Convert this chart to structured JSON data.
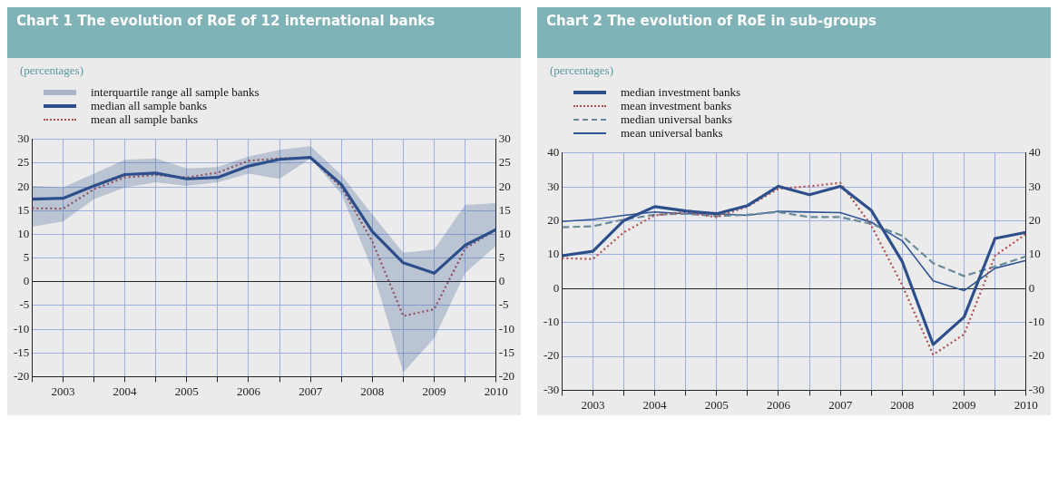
{
  "chart_data": [
    {
      "type": "line",
      "title": "Chart 1 The evolution of RoE of 12 international banks",
      "subtitle": "(percentages)",
      "x": [
        2002.5,
        2003,
        2003.5,
        2004,
        2004.5,
        2005,
        2005.5,
        2006,
        2006.5,
        2007,
        2007.5,
        2008,
        2008.5,
        2009,
        2009.5,
        2010
      ],
      "xlim": [
        2002.5,
        2010
      ],
      "xticks": [
        {
          "value": 2002.5,
          "label": null
        },
        2003,
        {
          "value": 2003.5,
          "label": null
        },
        2004,
        {
          "value": 2004.5,
          "label": null
        },
        2005,
        {
          "value": 2005.5,
          "label": null
        },
        2006,
        {
          "value": 2006.5,
          "label": null
        },
        2007,
        {
          "value": 2007.5,
          "label": null
        },
        2008,
        {
          "value": 2008.5,
          "label": null
        },
        2009,
        {
          "value": 2009.5,
          "label": null
        },
        2010
      ],
      "ylim": [
        -20,
        30
      ],
      "yticks": [
        -20,
        -15,
        -10,
        -5,
        0,
        5,
        10,
        15,
        20,
        25,
        30
      ],
      "y2lim": [
        -20,
        30
      ],
      "y2ticks": [
        -20,
        -15,
        -10,
        -5,
        0,
        5,
        10,
        15,
        20,
        25,
        30
      ],
      "grid": true,
      "legend": "top left",
      "annotations": [
        "interquartile range all sample banks"
      ],
      "series": [
        {
          "name": "median all sample banks",
          "color": "#2c4f8c",
          "line_style": "solid",
          "values": [
            17.4,
            17.6,
            20.2,
            22.6,
            22.9,
            21.7,
            22,
            24.4,
            25.8,
            26.2,
            20.5,
            10.6,
            4,
            1.8,
            7.7,
            11
          ],
          "lower": [
            11.6,
            12.7,
            17.4,
            19.9,
            21,
            20.2,
            21,
            22.8,
            21.7,
            26,
            18.5,
            2.6,
            -19.1,
            -11.9,
            1.8,
            7.6
          ],
          "upper": [
            20.2,
            19.9,
            22.8,
            25.7,
            26,
            23.9,
            24.2,
            26.4,
            27.8,
            28.6,
            22.5,
            14.2,
            6.1,
            6.8,
            16.2,
            16.6
          ]
        },
        {
          "name": "mean all sample banks",
          "color": "#b05050",
          "line_style": "dotted",
          "values": [
            15.5,
            15.4,
            19.5,
            22,
            22.5,
            22,
            23,
            25.5,
            26,
            26.2,
            19.9,
            8.5,
            -7.2,
            -5.8,
            7,
            11
          ]
        }
      ]
    },
    {
      "type": "line",
      "title": "Chart 2 The evolution of RoE in sub-groups",
      "subtitle": "(percentages)",
      "x": [
        2002.5,
        2003,
        2003.5,
        2004,
        2004.5,
        2005,
        2005.5,
        2006,
        2006.5,
        2007,
        2007.5,
        2008,
        2008.5,
        2009,
        2009.5,
        2010
      ],
      "xlim": [
        2002.5,
        2010
      ],
      "xticks": [
        {
          "value": 2002.5,
          "label": null
        },
        2003,
        {
          "value": 2003.5,
          "label": null
        },
        2004,
        {
          "value": 2004.5,
          "label": null
        },
        2005,
        {
          "value": 2005.5,
          "label": null
        },
        2006,
        {
          "value": 2006.5,
          "label": null
        },
        2007,
        {
          "value": 2007.5,
          "label": null
        },
        2008,
        {
          "value": 2008.5,
          "label": null
        },
        2009,
        {
          "value": 2009.5,
          "label": null
        },
        2010
      ],
      "ylim": [
        -30,
        40
      ],
      "yticks": [
        -30,
        -20,
        -10,
        0,
        10,
        20,
        30,
        40
      ],
      "y2lim": [
        -30,
        40
      ],
      "y2ticks": [
        -30,
        -20,
        -10,
        0,
        10,
        20,
        30,
        40
      ],
      "grid": true,
      "legend": "top left",
      "series": [
        {
          "name": "median investment banks",
          "color": "#2c4f8c",
          "line_style": "solid",
          "values": [
            9.7,
            11,
            20.1,
            24.2,
            22.9,
            22.1,
            24.5,
            30.2,
            27.7,
            30.2,
            23.1,
            8,
            -16.5,
            -8.4,
            14.8,
            16.6
          ]
        },
        {
          "name": "mean investment banks",
          "color": "#b05050",
          "line_style": "dotted",
          "values": [
            9,
            8.7,
            16.6,
            21.6,
            22.6,
            21.1,
            24.2,
            29.5,
            30.2,
            31.2,
            18.6,
            1,
            -19.5,
            -13.5,
            9.7,
            16.1
          ]
        },
        {
          "name": "median universal banks",
          "color": "#6a8a9a",
          "line_style": "dashed",
          "values": [
            18.1,
            18.4,
            20.4,
            21.8,
            22.1,
            21.4,
            21.8,
            22.6,
            21.1,
            21.1,
            19.1,
            15.6,
            7.5,
            3.7,
            6.5,
            9.5
          ]
        },
        {
          "name": "mean universal banks",
          "color": "#2f5597",
          "line_style": "solid",
          "values": [
            19.8,
            20.4,
            21.6,
            22.6,
            22.1,
            22.1,
            21.6,
            22.8,
            22.6,
            22.4,
            19.6,
            14.1,
            2.3,
            -0.6,
            6,
            8.3
          ]
        }
      ]
    }
  ]
}
